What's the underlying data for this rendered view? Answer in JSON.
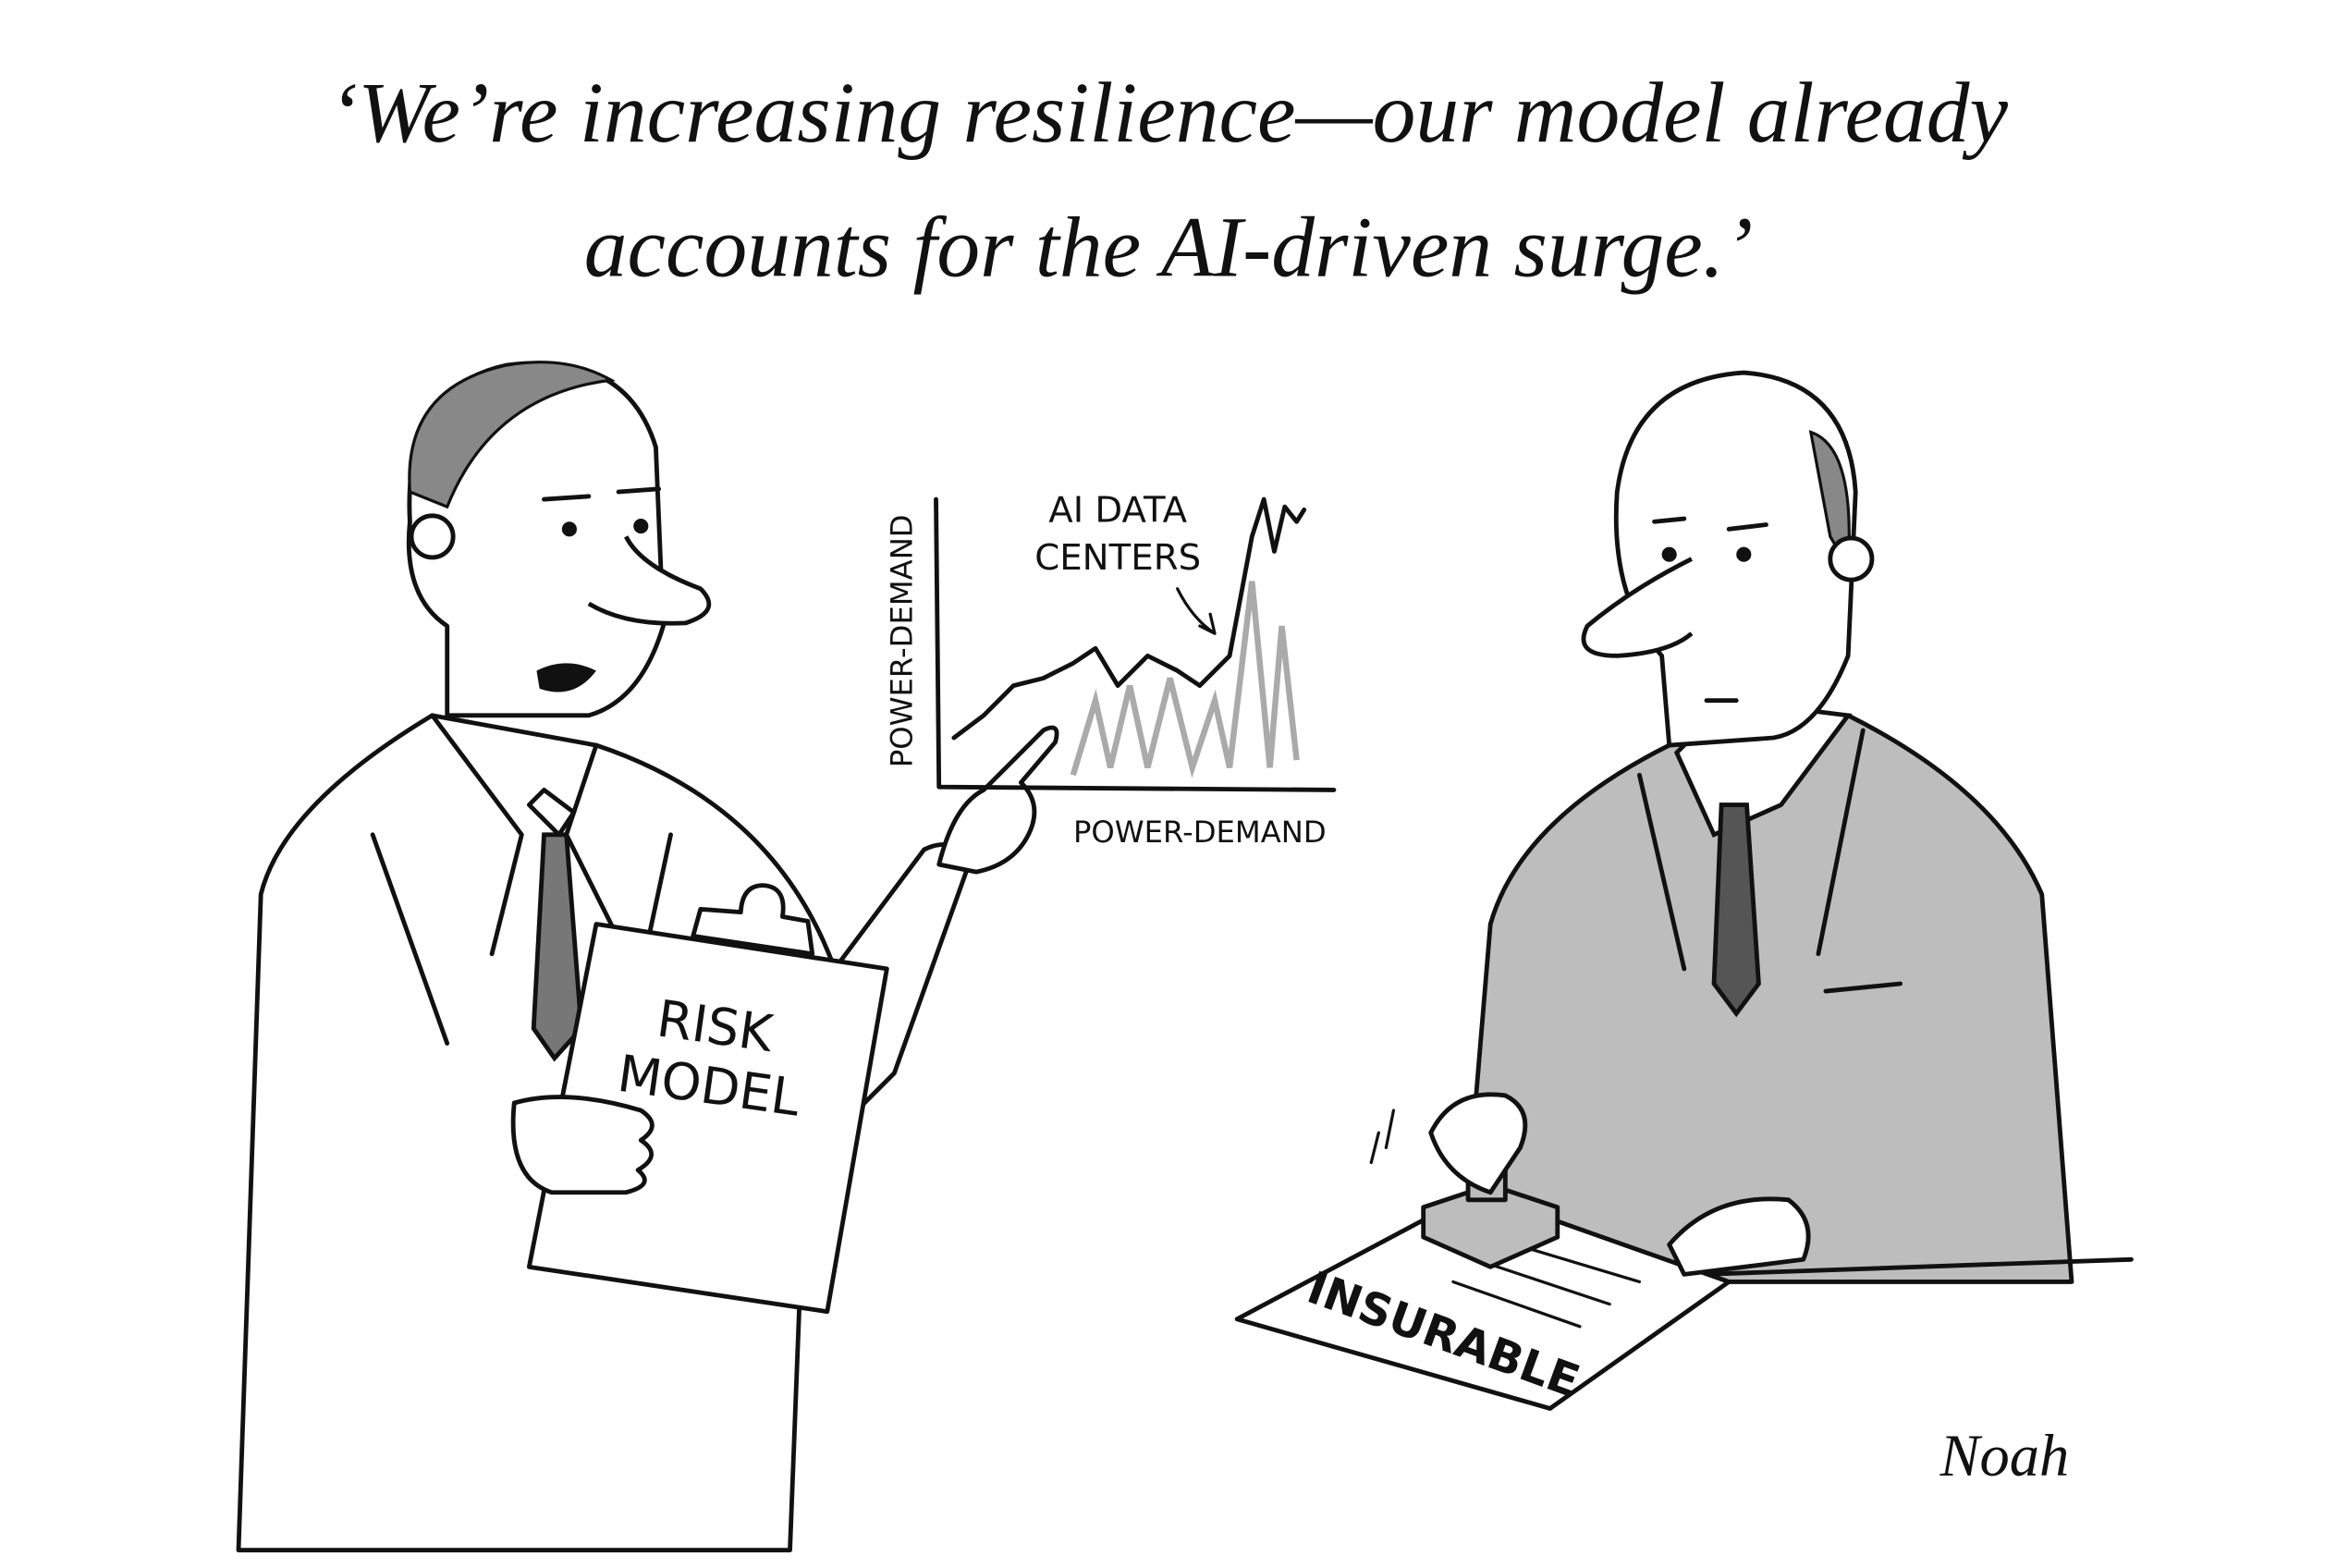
{
  "caption": {
    "lines": [
      "‘We’re increasing resilience—our model already",
      "accounts for the AI-driven surge.’"
    ]
  },
  "graph": {
    "annotation": {
      "lines": [
        "AI DATA",
        "CENTERS"
      ]
    },
    "y_label": "POWER-DEMAND",
    "x_label": "POWER-DEMAND"
  },
  "clipboard": {
    "lines": [
      "RISK",
      "MODEL"
    ]
  },
  "document": {
    "stamp": "INSURABLE"
  },
  "signature": "Noah"
}
